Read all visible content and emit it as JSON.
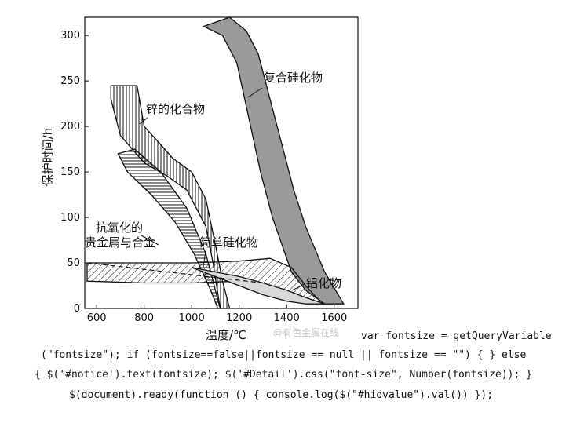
{
  "chart_data": {
    "type": "area",
    "xlabel": "温度/℃",
    "ylabel": "保护时间/h",
    "xlim": [
      550,
      1700
    ],
    "ylim": [
      0,
      320
    ],
    "x_ticks": [
      600,
      800,
      1000,
      1200,
      1400,
      1600
    ],
    "y_ticks": [
      0,
      50,
      100,
      150,
      200,
      250,
      300
    ],
    "grid": false,
    "series": [
      {
        "name": "复合硅化物",
        "fill": "gray",
        "upper": [
          [
            1050,
            310
          ],
          [
            1160,
            320
          ],
          [
            1230,
            305
          ],
          [
            1280,
            280
          ],
          [
            1330,
            230
          ],
          [
            1380,
            180
          ],
          [
            1430,
            130
          ],
          [
            1480,
            90
          ],
          [
            1560,
            40
          ],
          [
            1640,
            5
          ]
        ],
        "lower": [
          [
            1050,
            310
          ],
          [
            1130,
            300
          ],
          [
            1190,
            270
          ],
          [
            1240,
            210
          ],
          [
            1290,
            150
          ],
          [
            1340,
            100
          ],
          [
            1380,
            70
          ],
          [
            1420,
            40
          ],
          [
            1480,
            20
          ],
          [
            1560,
            5
          ],
          [
            1640,
            5
          ]
        ]
      },
      {
        "name": "锌的化合物",
        "fill": "vertical-hatch",
        "upper": [
          [
            660,
            245
          ],
          [
            770,
            245
          ],
          [
            800,
            200
          ],
          [
            870,
            180
          ],
          [
            920,
            165
          ],
          [
            1000,
            150
          ],
          [
            1060,
            120
          ],
          [
            1100,
            70
          ],
          [
            1130,
            30
          ],
          [
            1160,
            0
          ]
        ],
        "lower": [
          [
            660,
            245
          ],
          [
            660,
            230
          ],
          [
            700,
            190
          ],
          [
            800,
            160
          ],
          [
            900,
            145
          ],
          [
            980,
            130
          ],
          [
            1060,
            90
          ],
          [
            1090,
            50
          ],
          [
            1120,
            0
          ]
        ]
      },
      {
        "name": "抗氧化的贵金属与合金",
        "fill": "horizontal-hatch",
        "upper": [
          [
            690,
            170
          ],
          [
            760,
            175
          ],
          [
            870,
            150
          ],
          [
            980,
            110
          ],
          [
            1060,
            60
          ],
          [
            1100,
            20
          ],
          [
            1120,
            0
          ]
        ],
        "lower": [
          [
            690,
            170
          ],
          [
            730,
            150
          ],
          [
            830,
            125
          ],
          [
            930,
            95
          ],
          [
            1010,
            60
          ],
          [
            1080,
            20
          ],
          [
            1110,
            0
          ]
        ]
      },
      {
        "name": "简单硅化物",
        "fill": "diagonal-hatch",
        "upper": [
          [
            560,
            50
          ],
          [
            800,
            50
          ],
          [
            1000,
            50
          ],
          [
            1200,
            52
          ],
          [
            1330,
            55
          ],
          [
            1420,
            45
          ],
          [
            1480,
            25
          ],
          [
            1540,
            8
          ]
        ],
        "lower": [
          [
            560,
            30
          ],
          [
            800,
            28
          ],
          [
            1000,
            28
          ],
          [
            1200,
            30
          ],
          [
            1330,
            25
          ],
          [
            1420,
            15
          ],
          [
            1480,
            8
          ],
          [
            1540,
            8
          ]
        ]
      },
      {
        "name": "铝化物",
        "fill": "light-gray",
        "upper": [
          [
            1000,
            45
          ],
          [
            1100,
            40
          ],
          [
            1200,
            35
          ],
          [
            1300,
            28
          ],
          [
            1400,
            20
          ],
          [
            1480,
            12
          ],
          [
            1560,
            5
          ]
        ],
        "lower": [
          [
            1000,
            45
          ],
          [
            1100,
            35
          ],
          [
            1200,
            25
          ],
          [
            1300,
            15
          ],
          [
            1400,
            8
          ],
          [
            1480,
            5
          ],
          [
            1560,
            5
          ]
        ]
      }
    ],
    "annotations": {
      "fuhe": "复合硅化物",
      "xin": "锌的化合物",
      "kang1": "抗氧化的",
      "kang2": "贵金属与合金",
      "jiandan": "简单硅化物",
      "lv": "铝化物"
    },
    "watermark": "@有色金属在线"
  },
  "code_lines": [
    "var fontsize = getQueryVariable",
    "(\"fontsize\"); if (fontsize==false||fontsize == null || fontsize == \"\") { } else",
    "{ $('#notice').text(fontsize); $('#Detail').css(\"font-size\", Number(fontsize)); }",
    "$(document).ready(function () { console.log($(\"#hidvalue\").val()) });"
  ]
}
